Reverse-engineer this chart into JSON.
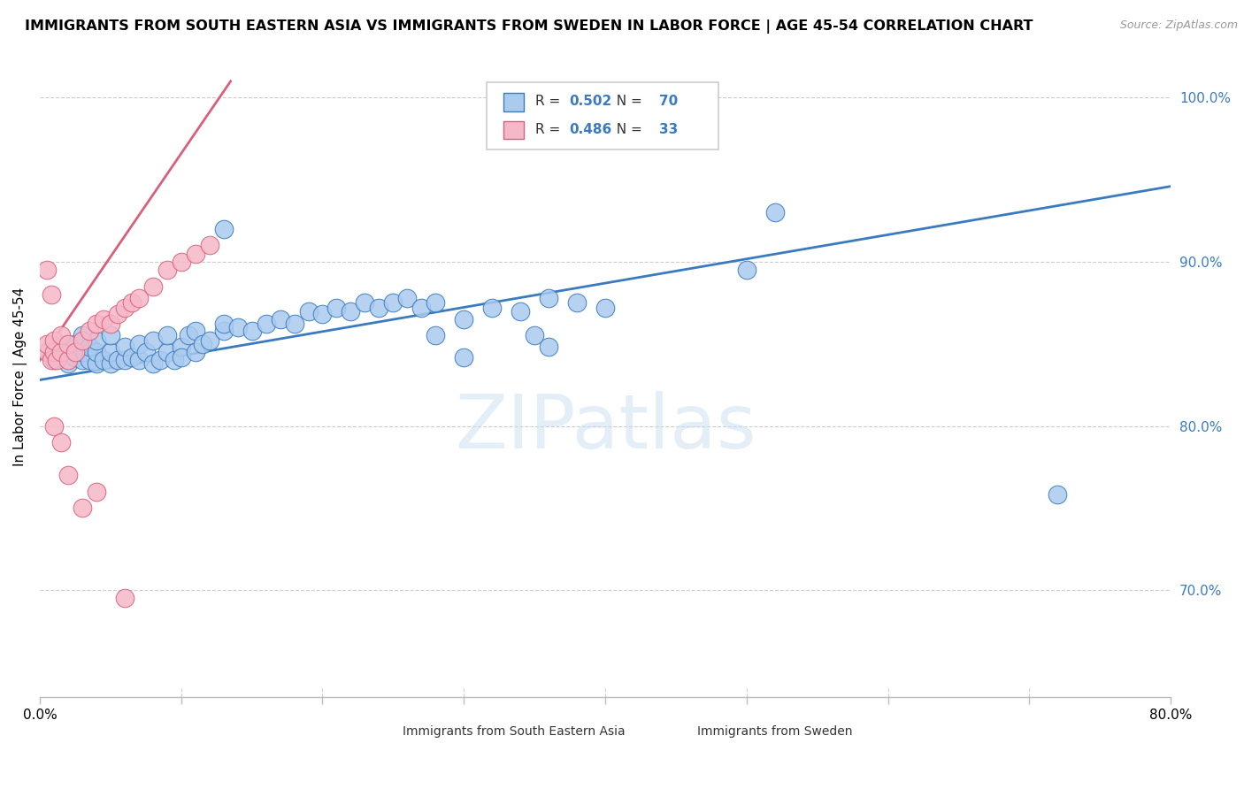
{
  "title": "IMMIGRANTS FROM SOUTH EASTERN ASIA VS IMMIGRANTS FROM SWEDEN IN LABOR FORCE | AGE 45-54 CORRELATION CHART",
  "source": "Source: ZipAtlas.com",
  "legend_bottom_blue": "Immigrants from South Eastern Asia",
  "legend_bottom_pink": "Immigrants from Sweden",
  "ylabel": "In Labor Force | Age 45-54",
  "xlim": [
    0.0,
    0.8
  ],
  "ylim": [
    0.635,
    1.025
  ],
  "ytick_positions": [
    0.7,
    0.8,
    0.9,
    1.0
  ],
  "yticklabels": [
    "70.0%",
    "80.0%",
    "90.0%",
    "100.0%"
  ],
  "R_blue": 0.502,
  "N_blue": 70,
  "R_pink": 0.486,
  "N_pink": 33,
  "blue_color": "#aacbee",
  "pink_color": "#f5b8c8",
  "trend_blue": "#3a7bbf",
  "trend_pink": "#d9607a",
  "watermark": "ZIPatlas",
  "blue_scatter_x": [
    0.01,
    0.01,
    0.015,
    0.02,
    0.02,
    0.025,
    0.025,
    0.03,
    0.03,
    0.03,
    0.035,
    0.035,
    0.04,
    0.04,
    0.04,
    0.045,
    0.05,
    0.05,
    0.05,
    0.055,
    0.06,
    0.06,
    0.065,
    0.07,
    0.07,
    0.075,
    0.08,
    0.08,
    0.085,
    0.09,
    0.09,
    0.095,
    0.1,
    0.1,
    0.105,
    0.11,
    0.11,
    0.115,
    0.12,
    0.13,
    0.13,
    0.14,
    0.15,
    0.16,
    0.17,
    0.18,
    0.19,
    0.2,
    0.21,
    0.22,
    0.23,
    0.24,
    0.25,
    0.26,
    0.27,
    0.28,
    0.3,
    0.32,
    0.34,
    0.36,
    0.38,
    0.4,
    0.5,
    0.52,
    0.13,
    0.28,
    0.3,
    0.35,
    0.36,
    0.72
  ],
  "blue_scatter_y": [
    0.845,
    0.84,
    0.848,
    0.845,
    0.838,
    0.842,
    0.85,
    0.84,
    0.845,
    0.855,
    0.84,
    0.848,
    0.838,
    0.845,
    0.852,
    0.84,
    0.838,
    0.845,
    0.855,
    0.84,
    0.84,
    0.848,
    0.842,
    0.84,
    0.85,
    0.845,
    0.838,
    0.852,
    0.84,
    0.845,
    0.855,
    0.84,
    0.848,
    0.842,
    0.855,
    0.845,
    0.858,
    0.85,
    0.852,
    0.858,
    0.862,
    0.86,
    0.858,
    0.862,
    0.865,
    0.862,
    0.87,
    0.868,
    0.872,
    0.87,
    0.875,
    0.872,
    0.875,
    0.878,
    0.872,
    0.875,
    0.865,
    0.872,
    0.87,
    0.878,
    0.875,
    0.872,
    0.895,
    0.93,
    0.92,
    0.855,
    0.842,
    0.855,
    0.848,
    0.758
  ],
  "pink_scatter_x": [
    0.005,
    0.005,
    0.008,
    0.01,
    0.01,
    0.012,
    0.015,
    0.015,
    0.02,
    0.02,
    0.025,
    0.03,
    0.035,
    0.04,
    0.045,
    0.05,
    0.055,
    0.06,
    0.065,
    0.07,
    0.08,
    0.09,
    0.1,
    0.11,
    0.12,
    0.005,
    0.008,
    0.01,
    0.015,
    0.02,
    0.03,
    0.04,
    0.06
  ],
  "pink_scatter_y": [
    0.845,
    0.85,
    0.84,
    0.845,
    0.852,
    0.84,
    0.845,
    0.855,
    0.84,
    0.85,
    0.845,
    0.852,
    0.858,
    0.862,
    0.865,
    0.862,
    0.868,
    0.872,
    0.875,
    0.878,
    0.885,
    0.895,
    0.9,
    0.905,
    0.91,
    0.895,
    0.88,
    0.8,
    0.79,
    0.77,
    0.75,
    0.76,
    0.695
  ],
  "blue_trend_x": [
    0.0,
    0.8
  ],
  "blue_trend_y": [
    0.828,
    0.946
  ],
  "pink_trend_x": [
    0.0,
    0.135
  ],
  "pink_trend_y": [
    0.84,
    1.01
  ]
}
